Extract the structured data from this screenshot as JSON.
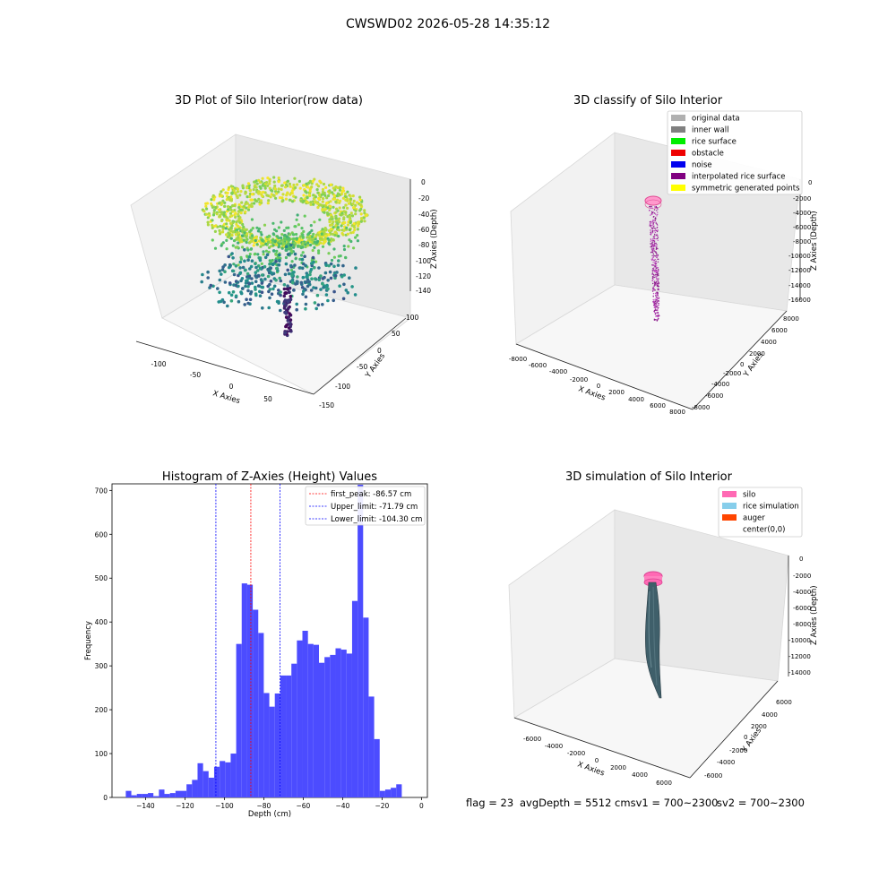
{
  "figure": {
    "suptitle": "CWSWD02 2026-05-28 14:35:12",
    "footer": {
      "flag": "flag = 23",
      "avg": "avgDepth = 5512 cmsv1 = 700~2300",
      "sv2": "sv2 = 700~2300"
    }
  },
  "panels": {
    "raw": {
      "title": "3D Plot of Silo Interior(row data)",
      "xlabel": "X Axies",
      "ylabel": "Y Axies",
      "zlabel": "Z Axies (Depth)",
      "xticks": [
        "-100",
        "-50",
        "0",
        "50"
      ],
      "yticks": [
        "100",
        "50",
        "0",
        "-50",
        "-100",
        "-150"
      ],
      "zticks": [
        "0",
        "-20",
        "-40",
        "-60",
        "-80",
        "-100",
        "-120",
        "-140"
      ]
    },
    "classify": {
      "title": "3D classify of Silo Interior",
      "xlabel": "X Axies",
      "ylabel": "Y Axies",
      "zlabel": "Z Axies (Depth)",
      "xticks": [
        "-8000",
        "-6000",
        "-4000",
        "-2000",
        "0",
        "2000",
        "4000",
        "6000",
        "8000"
      ],
      "yticks": [
        "8000",
        "6000",
        "4000",
        "2000",
        "0",
        "-2000",
        "-4000",
        "-6000",
        "-8000"
      ],
      "zticks": [
        "0",
        "-2000",
        "-4000",
        "-6000",
        "-8000",
        "-10000",
        "-12000",
        "-14000",
        "-16000"
      ],
      "legend": [
        {
          "label": "original data",
          "color": "#b0b0b0"
        },
        {
          "label": "inner wall",
          "color": "#808080"
        },
        {
          "label": "rice surface",
          "color": "#00ee00"
        },
        {
          "label": "obstacle",
          "color": "#ee0000"
        },
        {
          "label": "noise",
          "color": "#0000ee"
        },
        {
          "label": "interpolated rice surface",
          "color": "#800080"
        },
        {
          "label": "symmetric generated points",
          "color": "#ffff00"
        }
      ]
    },
    "simulation": {
      "title": "3D simulation of Silo Interior",
      "xlabel": "X Axies",
      "ylabel": "Y Axies",
      "zlabel": "Z Axies (Depth)",
      "xticks": [
        "-6000",
        "-4000",
        "-2000",
        "0",
        "2000",
        "4000",
        "6000"
      ],
      "yticks": [
        "6000",
        "4000",
        "2000",
        "0",
        "-2000",
        "-4000",
        "-6000"
      ],
      "zticks": [
        "0",
        "-2000",
        "-4000",
        "-6000",
        "-8000",
        "-10000",
        "-12000",
        "-14000"
      ],
      "legend": [
        {
          "label": "silo",
          "color": "#ff69b4"
        },
        {
          "label": "rice simulation",
          "color": "#87ceeb"
        },
        {
          "label": "auger",
          "color": "#ff4500"
        },
        {
          "label": "center(0,0)",
          "color": "#ffffff"
        }
      ]
    }
  },
  "chart_data": [
    {
      "type": "bar",
      "title": "Histogram of Z-Axies (Height) Values",
      "xlabel": "Depth (cm)",
      "ylabel": "Frequency",
      "xlim": [
        -157,
        3
      ],
      "ylim": [
        0,
        715
      ],
      "xticks": [
        -140,
        -120,
        -100,
        -80,
        -60,
        -40,
        -20,
        0
      ],
      "yticks": [
        0,
        100,
        200,
        300,
        400,
        500,
        600,
        700
      ],
      "bar_color": "#4c4cff",
      "bin_width": 2.8,
      "bin_start": -150,
      "values": [
        15,
        5,
        8,
        8,
        10,
        3,
        18,
        8,
        10,
        15,
        15,
        30,
        40,
        78,
        60,
        45,
        70,
        83,
        80,
        100,
        350,
        488,
        485,
        428,
        375,
        238,
        207,
        237,
        278,
        278,
        305,
        358,
        380,
        350,
        348,
        307,
        320,
        325,
        340,
        337,
        328,
        448,
        713,
        410,
        230,
        133,
        15,
        18,
        22,
        30
      ],
      "lines": [
        {
          "name": "first_peak: -86.57 cm",
          "x": -86.57,
          "color": "#ff0000"
        },
        {
          "name": "Upper_limit: -71.79 cm",
          "x": -71.79,
          "color": "#0000ff"
        },
        {
          "name": "Lower_limit: -104.30 cm",
          "x": -104.3,
          "color": "#0000ff"
        }
      ],
      "legend_position": "top-right"
    }
  ]
}
